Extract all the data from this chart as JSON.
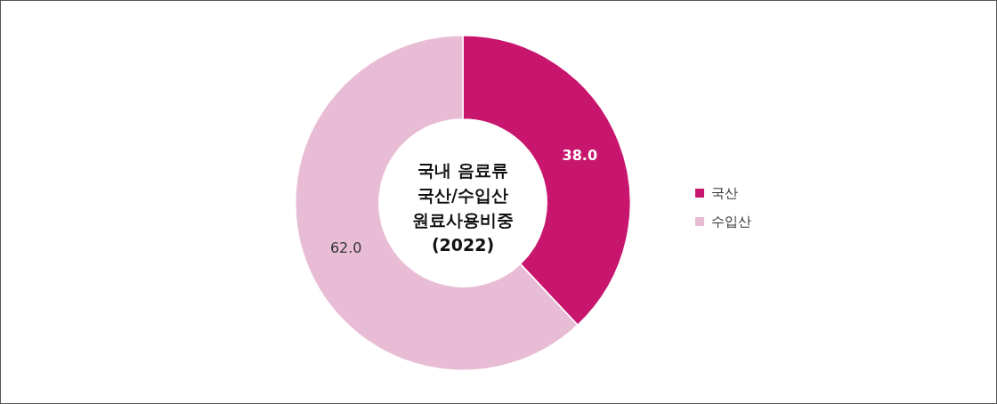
{
  "chart_data": {
    "type": "donut",
    "title": "국내 음료류\n국산/수입산\n원료사용비중\n(2022)",
    "categories": [
      "국산",
      "수입산"
    ],
    "values": [
      38,
      62
    ],
    "value_labels": [
      "38.0",
      "62.0"
    ],
    "colors": [
      "#c8166e",
      "#e8bcd4"
    ],
    "legend": "right"
  }
}
